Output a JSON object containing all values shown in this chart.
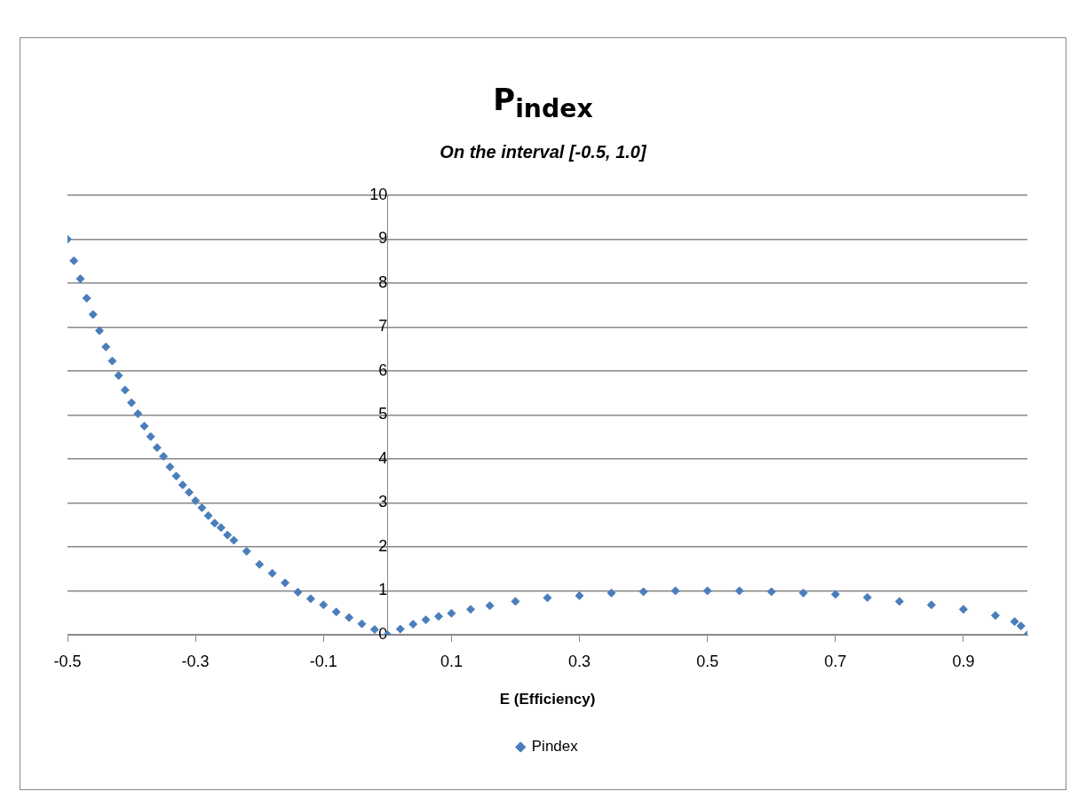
{
  "chart_data": {
    "type": "scatter",
    "title": "P$_{index}$",
    "subtitle": "On the interval [-0.5, 1.0]",
    "xlabel": "E (Efficiency)",
    "xlim": [
      -0.5,
      1.0
    ],
    "xticks": [
      -0.5,
      -0.3,
      -0.1,
      0.1,
      0.3,
      0.5,
      0.7,
      0.9
    ],
    "ylim": [
      0,
      10
    ],
    "yticks": [
      0,
      1,
      2,
      3,
      4,
      5,
      6,
      7,
      8,
      9,
      10
    ],
    "grid": "y",
    "legend": "bottom",
    "marker": "diamond",
    "series": [
      {
        "name": "Pindex",
        "color": "#4a7ebb",
        "x": [
          -0.5,
          -0.49,
          -0.48,
          -0.47,
          -0.46,
          -0.45,
          -0.44,
          -0.43,
          -0.42,
          -0.41,
          -0.4,
          -0.39,
          -0.38,
          -0.37,
          -0.36,
          -0.35,
          -0.34,
          -0.33,
          -0.32,
          -0.31,
          -0.3,
          -0.29,
          -0.28,
          -0.27,
          -0.26,
          -0.25,
          -0.24,
          -0.22,
          -0.2,
          -0.18,
          -0.16,
          -0.14,
          -0.12,
          -0.1,
          -0.08,
          -0.06,
          -0.04,
          -0.02,
          0,
          0.02,
          0.04,
          0.06,
          0.08,
          0.1,
          0.13,
          0.16,
          0.2,
          0.25,
          0.3,
          0.35,
          0.4,
          0.45,
          0.5,
          0.55,
          0.6,
          0.65,
          0.7,
          0.75,
          0.8,
          0.85,
          0.9,
          0.95,
          0.98,
          0.99,
          1.0
        ],
        "values": [
          9.0,
          8.51,
          8.1,
          7.66,
          7.29,
          6.92,
          6.55,
          6.23,
          5.9,
          5.57,
          5.28,
          5.03,
          4.75,
          4.51,
          4.26,
          4.06,
          3.82,
          3.61,
          3.41,
          3.24,
          3.05,
          2.89,
          2.71,
          2.54,
          2.44,
          2.27,
          2.15,
          1.9,
          1.6,
          1.4,
          1.18,
          0.97,
          0.82,
          0.68,
          0.52,
          0.39,
          0.25,
          0.12,
          0,
          0.13,
          0.24,
          0.34,
          0.42,
          0.49,
          0.58,
          0.66,
          0.76,
          0.84,
          0.89,
          0.95,
          0.98,
          1.0,
          1.0,
          1.0,
          0.98,
          0.95,
          0.92,
          0.85,
          0.76,
          0.68,
          0.58,
          0.44,
          0.3,
          0.2,
          0
        ]
      }
    ]
  }
}
